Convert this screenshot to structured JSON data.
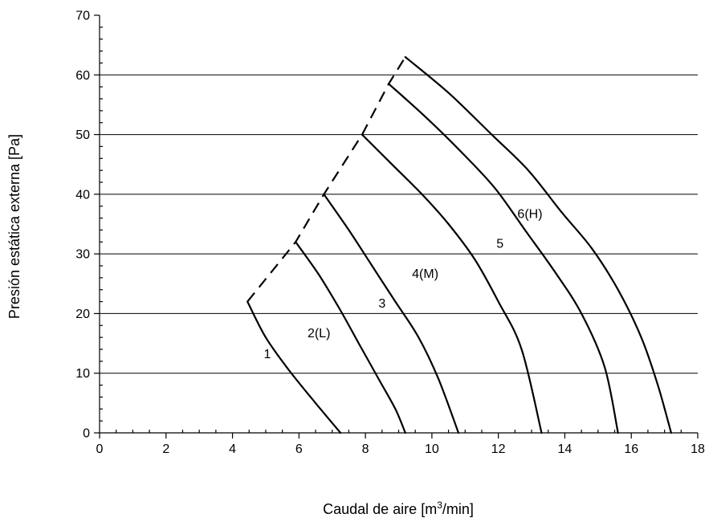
{
  "chart_data": {
    "type": "line",
    "xlabel": "Caudal de aire [m",
    "xlabel_sup": "3",
    "xlabel_end": "/min]",
    "ylabel": "Presión estática externa [Pa]",
    "xlim": [
      0,
      18
    ],
    "ylim": [
      0,
      70
    ],
    "x_ticks": [
      0,
      2,
      4,
      6,
      8,
      10,
      12,
      14,
      16,
      18
    ],
    "y_ticks": [
      0,
      10,
      20,
      30,
      40,
      50,
      60,
      70
    ],
    "x_tick_labels": [
      "0",
      "2",
      "4",
      "6",
      "8",
      "10",
      "12",
      "14",
      "16",
      "18"
    ],
    "y_tick_labels": [
      "0",
      "10",
      "20",
      "30",
      "40",
      "50",
      "60",
      "70"
    ],
    "x_minor_step": 0.5,
    "y_minor_step": 2,
    "grid": "horizontal",
    "series": [
      {
        "name": "1",
        "label_at": [
          5.05,
          12.5
        ],
        "points": [
          [
            4.45,
            22
          ],
          [
            5.0,
            16
          ],
          [
            5.7,
            10.5
          ],
          [
            6.5,
            5
          ],
          [
            7.25,
            0
          ]
        ]
      },
      {
        "name": "2(L)",
        "label_at": [
          6.6,
          16
        ],
        "points": [
          [
            5.9,
            32
          ],
          [
            6.6,
            26.5
          ],
          [
            7.2,
            21
          ],
          [
            7.8,
            15
          ],
          [
            8.4,
            9
          ],
          [
            8.9,
            4
          ],
          [
            9.2,
            0
          ]
        ]
      },
      {
        "name": "3",
        "label_at": [
          8.5,
          21
        ],
        "points": [
          [
            6.75,
            40
          ],
          [
            7.5,
            34
          ],
          [
            8.2,
            28
          ],
          [
            8.9,
            22
          ],
          [
            9.6,
            16
          ],
          [
            10.2,
            9
          ],
          [
            10.8,
            0
          ]
        ]
      },
      {
        "name": "4(M)",
        "label_at": [
          9.8,
          26
        ],
        "points": [
          [
            7.9,
            50
          ],
          [
            8.8,
            45
          ],
          [
            9.7,
            40
          ],
          [
            10.5,
            35
          ],
          [
            11.3,
            29
          ],
          [
            12.0,
            22
          ],
          [
            12.7,
            14
          ],
          [
            13.3,
            0
          ]
        ]
      },
      {
        "name": "5",
        "label_at": [
          12.05,
          31
        ],
        "points": [
          [
            8.7,
            58.5
          ],
          [
            9.8,
            53
          ],
          [
            10.9,
            47
          ],
          [
            11.9,
            41
          ],
          [
            12.8,
            34
          ],
          [
            13.7,
            27
          ],
          [
            14.5,
            20
          ],
          [
            15.2,
            11
          ],
          [
            15.6,
            0
          ]
        ]
      },
      {
        "name": "6(H)",
        "label_at": [
          12.95,
          36
        ],
        "points": [
          [
            9.2,
            63
          ],
          [
            10.5,
            57
          ],
          [
            11.8,
            50
          ],
          [
            12.9,
            44
          ],
          [
            13.9,
            37
          ],
          [
            14.8,
            31
          ],
          [
            15.6,
            24
          ],
          [
            16.3,
            16
          ],
          [
            16.8,
            8
          ],
          [
            17.2,
            0
          ]
        ]
      }
    ],
    "envelope": {
      "style": "dashed",
      "points": [
        [
          4.45,
          22
        ],
        [
          5.9,
          32
        ],
        [
          6.75,
          40
        ],
        [
          7.9,
          50
        ],
        [
          8.7,
          58.5
        ],
        [
          9.2,
          63
        ]
      ]
    }
  }
}
